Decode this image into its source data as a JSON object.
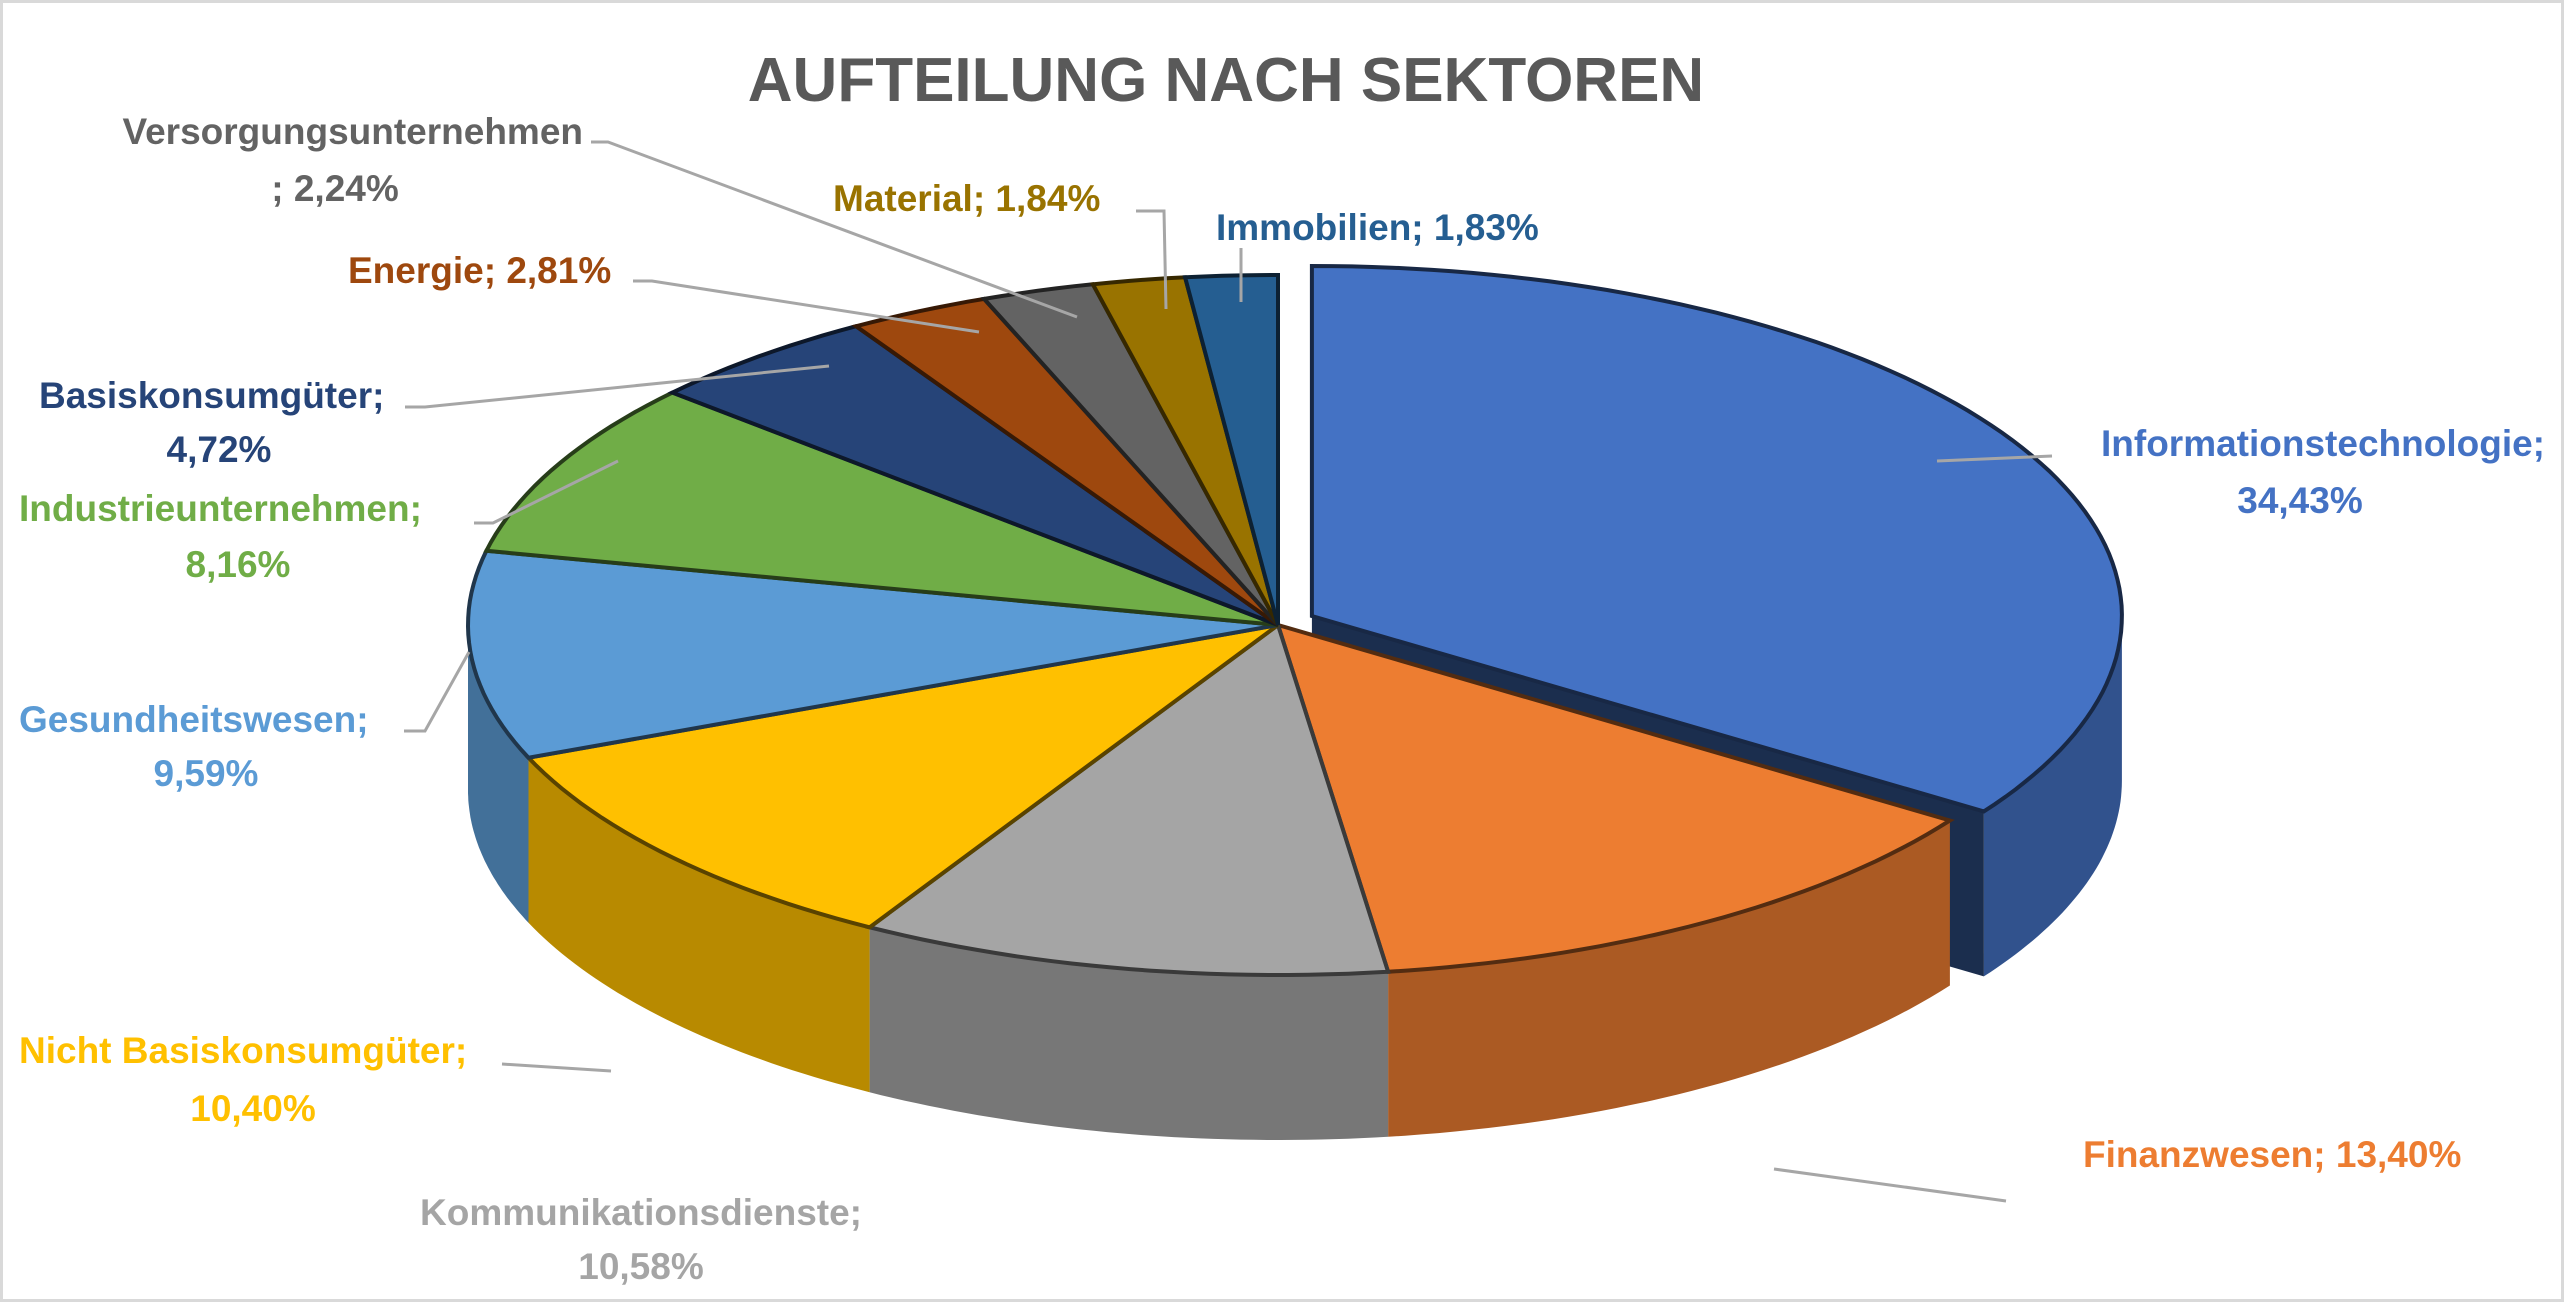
{
  "chart_data": {
    "type": "pie",
    "variant": "3d-exploded-first-slice",
    "title": "AUFTEILUNG NACH SEKTOREN",
    "legend": "none",
    "series": [
      {
        "categories": [
          "Informationstechnologie",
          "Finanzwesen",
          "Kommunikationsdienste",
          "Nicht Basiskonsumgüter",
          "Gesundheitswesen",
          "Industrieunternehmen",
          "Basiskonsumgüter",
          "Energie",
          "Versorgungsunternehmen",
          "Material",
          "Immobilien"
        ],
        "values": [
          34.43,
          13.4,
          10.58,
          10.4,
          9.59,
          8.16,
          4.72,
          2.81,
          2.24,
          1.84,
          1.83
        ],
        "colors": [
          "#4472C4",
          "#ED7D31",
          "#A5A5A5",
          "#FFC000",
          "#5B9BD5",
          "#70AD47",
          "#264478",
          "#9E480E",
          "#636363",
          "#997300",
          "#255E91"
        ]
      }
    ],
    "data_labels": [
      {
        "line1": "Informationstechnologie;",
        "line2": "34,43%",
        "color": "#4472C4"
      },
      {
        "line1": "Finanzwesen; 13,40%",
        "line2": "",
        "color": "#ED7D31"
      },
      {
        "line1": "Kommunikationsdienste;",
        "line2": "10,58%",
        "color": "#A5A5A5"
      },
      {
        "line1": "Nicht Basiskonsumgüter;",
        "line2": "10,40%",
        "color": "#FFC000"
      },
      {
        "line1": "Gesundheitswesen;",
        "line2": "9,59%",
        "color": "#5B9BD5"
      },
      {
        "line1": "Industrieunternehmen;",
        "line2": "8,16%",
        "color": "#70AD47"
      },
      {
        "line1": "Basiskonsumgüter;",
        "line2": "4,72%",
        "color": "#264478"
      },
      {
        "line1": "Energie; 2,81%",
        "line2": "",
        "color": "#9E480E"
      },
      {
        "line1": "Versorgungsunternehmen",
        "line2": "; 2,24%",
        "color": "#636363"
      },
      {
        "line1": "Material; 1,84%",
        "line2": "",
        "color": "#997300"
      },
      {
        "line1": "Immobilien; 1,83%",
        "line2": "",
        "color": "#255E91"
      }
    ]
  }
}
